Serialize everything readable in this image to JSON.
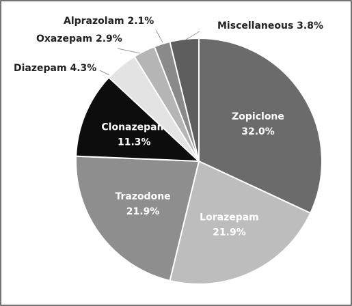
{
  "chart_data": {
    "type": "pie",
    "categories": [
      "Zopiclone",
      "Lorazepam",
      "Trazodone",
      "Clonazepam",
      "Diazepam",
      "Oxazepam",
      "Alprazolam",
      "Miscellaneous"
    ],
    "values": [
      32.0,
      21.9,
      21.9,
      11.3,
      4.3,
      2.9,
      2.1,
      3.8
    ],
    "value_labels": [
      "32.0%",
      "21.9%",
      "21.9%",
      "11.3%",
      "4.3%",
      "2.9%",
      "2.1%",
      "3.8%"
    ],
    "colors": [
      "#6b6b6b",
      "#bdbdbd",
      "#8e8e8e",
      "#0d0d0d",
      "#e3e3e3",
      "#b5b5b5",
      "#8a8a8a",
      "#5e5e5e"
    ]
  }
}
